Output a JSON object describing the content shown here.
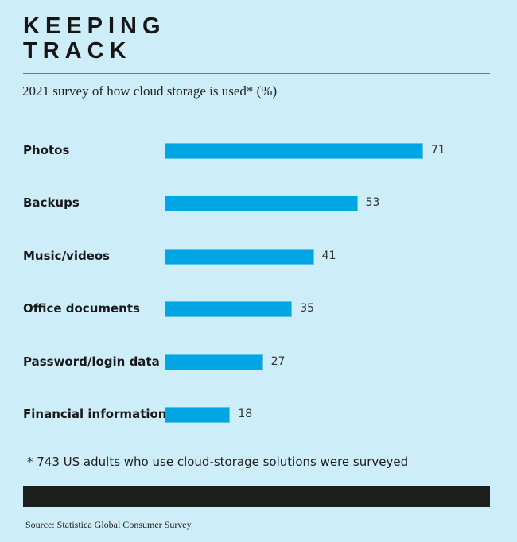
{
  "title_line1": "KEEPING",
  "title_line2": "TRACK",
  "subtitle": "2021 survey of how cloud storage is used* (%)",
  "footnote": "* 743 US adults who use cloud-storage solutions were surveyed",
  "source": "Source: Statistica Global Consumer Survey",
  "colors": {
    "background": "#cdedf9",
    "bar": "#00a5e3"
  },
  "chart_data": {
    "type": "bar",
    "orientation": "horizontal",
    "title": "2021 survey of how cloud storage is used* (%)",
    "categories": [
      "Photos",
      "Backups",
      "Music/videos",
      "Office documents",
      "Password/login data",
      "Financial information"
    ],
    "values": [
      71,
      53,
      41,
      35,
      27,
      18
    ],
    "xlabel": "",
    "ylabel": "",
    "xlim": [
      0,
      71
    ],
    "grid": false
  }
}
